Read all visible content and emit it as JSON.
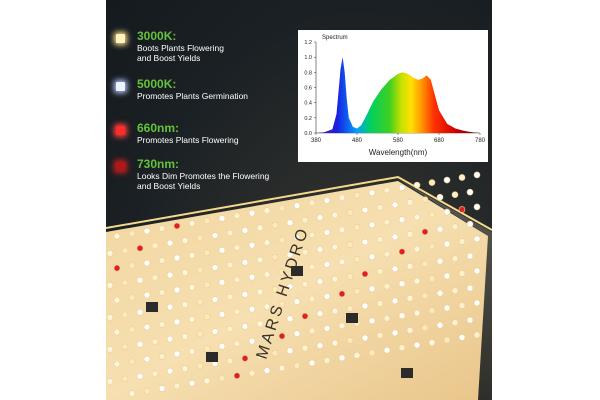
{
  "lights": [
    {
      "title": "3000K:",
      "desc": [
        "Boots Plants Flowering",
        "and Boost Yields"
      ],
      "color": "#fff3c0",
      "glow": "#ffe08a"
    },
    {
      "title": "5000K:",
      "desc": [
        "Promotes Plants Germination"
      ],
      "color": "#eef2ff",
      "glow": "#b8c8ff"
    },
    {
      "title": "660nm:",
      "desc": [
        "Promotes Plants Flowering"
      ],
      "color": "#ff2a2a",
      "glow": "#ff4040"
    },
    {
      "title": "730nm:",
      "desc": [
        "Looks Dim Promotes the Flowering",
        "and Boost Yields"
      ],
      "color": "#b01818",
      "glow": "#d02020"
    }
  ],
  "chart_data": {
    "type": "area",
    "title": "Spectrum",
    "xlabel": "Wavelength(nm)",
    "ylabel": "",
    "xlim": [
      380,
      780
    ],
    "ylim": [
      0,
      1.2
    ],
    "xticks": [
      380,
      480,
      580,
      680,
      780
    ],
    "yticks": [
      0.0,
      0.2,
      0.4,
      0.6,
      0.8,
      1.0,
      1.2
    ],
    "ytick_labels": [
      "0.0",
      "0.2",
      "0.4",
      "0.6",
      "0.8",
      "1.0",
      "1.2"
    ],
    "x": [
      380,
      400,
      420,
      430,
      435,
      440,
      445,
      450,
      455,
      460,
      470,
      480,
      490,
      500,
      520,
      540,
      560,
      580,
      590,
      600,
      610,
      620,
      630,
      640,
      650,
      660,
      670,
      680,
      700,
      720,
      740,
      760,
      780
    ],
    "y": [
      0.0,
      0.01,
      0.05,
      0.25,
      0.55,
      0.85,
      1.0,
      0.8,
      0.45,
      0.2,
      0.08,
      0.06,
      0.1,
      0.2,
      0.42,
      0.58,
      0.7,
      0.78,
      0.8,
      0.79,
      0.76,
      0.72,
      0.7,
      0.72,
      0.76,
      0.7,
      0.5,
      0.3,
      0.12,
      0.06,
      0.03,
      0.01,
      0.0
    ]
  },
  "brand": "MARS HYDRO",
  "colors": {
    "accent_green": "#64c23a",
    "text": "#ffffff",
    "panel": "#f3d7a4"
  }
}
